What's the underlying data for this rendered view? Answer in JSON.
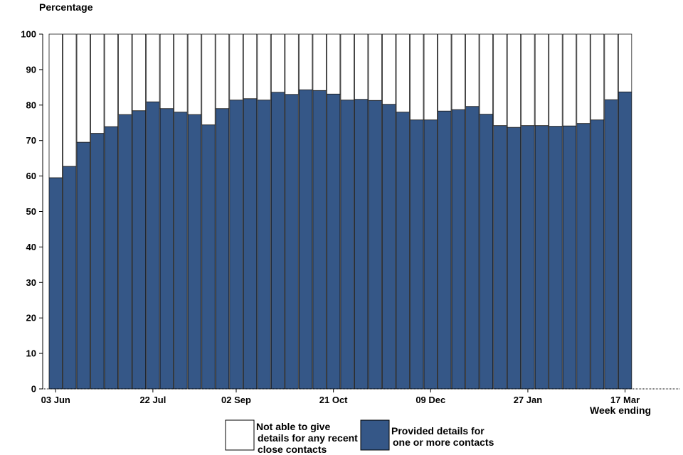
{
  "chart_data": {
    "type": "bar",
    "stacked": true,
    "ylabel": "Percentage",
    "xlabel": "Week ending",
    "ylim": [
      0,
      100
    ],
    "yticks": [
      0,
      10,
      20,
      30,
      40,
      50,
      60,
      70,
      80,
      90,
      100
    ],
    "x_tick_labels": [
      {
        "index": 0,
        "label": "03 Jun"
      },
      {
        "index": 7,
        "label": "22 Jul"
      },
      {
        "index": 13,
        "label": "02 Sep"
      },
      {
        "index": 20,
        "label": "21 Oct"
      },
      {
        "index": 27,
        "label": "09 Dec"
      },
      {
        "index": 34,
        "label": "27 Jan"
      },
      {
        "index": 41,
        "label": "17 Mar"
      }
    ],
    "grid": false,
    "legend_position": "bottom",
    "series": [
      {
        "name": "Provided details for one or more contacts",
        "color": "#355787",
        "values": [
          59.5,
          62.7,
          69.5,
          72.0,
          73.9,
          77.3,
          78.4,
          80.9,
          79.0,
          78.0,
          77.3,
          74.4,
          79.0,
          81.4,
          81.8,
          81.4,
          83.6,
          83.0,
          84.3,
          84.1,
          83.1,
          81.4,
          81.6,
          81.3,
          80.2,
          78.0,
          75.8,
          75.8,
          78.3,
          78.7,
          79.6,
          77.4,
          74.2,
          73.7,
          74.2,
          74.2,
          74.0,
          74.1,
          74.8,
          75.8,
          81.5,
          83.7
        ]
      },
      {
        "name": "Not able to give details for any recent close contacts",
        "color": "#ffffff",
        "values": [
          40.5,
          37.3,
          30.5,
          28.0,
          26.1,
          22.7,
          21.6,
          19.1,
          21.0,
          22.0,
          22.7,
          25.6,
          21.0,
          18.6,
          18.2,
          18.6,
          16.4,
          17.0,
          15.7,
          15.9,
          16.9,
          18.6,
          18.4,
          18.7,
          19.8,
          22.0,
          24.2,
          24.2,
          21.7,
          21.3,
          20.4,
          22.6,
          25.8,
          26.3,
          25.8,
          25.8,
          26.0,
          25.9,
          25.2,
          24.2,
          18.5,
          16.3
        ]
      }
    ],
    "legend": [
      {
        "lines": [
          "Not able to give",
          "details for any recent",
          "close contacts"
        ],
        "color": "#ffffff"
      },
      {
        "lines": [
          "Provided details for",
          "one or more contacts"
        ],
        "color": "#355787"
      }
    ]
  }
}
